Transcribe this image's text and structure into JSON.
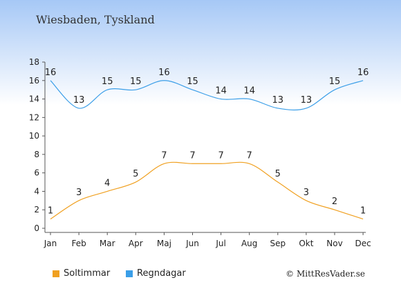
{
  "title": "Wiesbaden, Tyskland",
  "copyright": "© MittResVader.se",
  "chart_data": {
    "type": "line",
    "categories": [
      "Jan",
      "Feb",
      "Mar",
      "Apr",
      "Maj",
      "Jun",
      "Jul",
      "Aug",
      "Sep",
      "Okt",
      "Nov",
      "Dec"
    ],
    "ylim": [
      0,
      18
    ],
    "yticks": [
      0,
      2,
      4,
      6,
      8,
      10,
      12,
      14,
      16,
      18
    ],
    "grid": false,
    "legend": "bottom-left",
    "series": [
      {
        "name": "Soltimmar",
        "values": [
          1,
          3,
          4,
          5,
          7,
          7,
          7,
          7,
          5,
          3,
          2,
          1
        ],
        "color": "#f0a020"
      },
      {
        "name": "Regndagar",
        "values": [
          16,
          13,
          15,
          15,
          16,
          15,
          14,
          14,
          13,
          13,
          15,
          16
        ],
        "color": "#3a9ee8"
      }
    ]
  }
}
